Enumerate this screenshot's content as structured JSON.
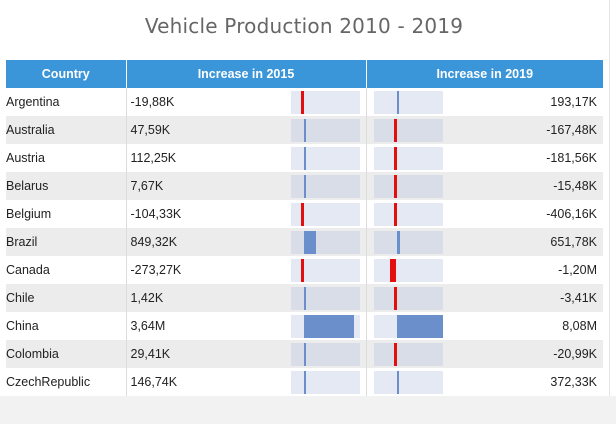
{
  "title": "Vehicle Production 2010 - 2019",
  "columns": {
    "country": "Country",
    "inc2015": "Increase in 2015",
    "inc2019": "Increase in 2019"
  },
  "colors": {
    "header": "#3b95d9",
    "positive_bar": "#6a8fcb",
    "negative_bar": "#e30e0e"
  },
  "scales": {
    "inc2015": {
      "min": -1000000,
      "max": 4000000
    },
    "inc2019": {
      "min": -4000000,
      "max": 8000000
    }
  },
  "rows": [
    {
      "country": "Argentina",
      "inc2015": "-19,88K",
      "inc2015_value": -19880,
      "inc2019": "193,17K",
      "inc2019_value": 193170
    },
    {
      "country": "Australia",
      "inc2015": "47,59K",
      "inc2015_value": 47590,
      "inc2019": "-167,48K",
      "inc2019_value": -167480
    },
    {
      "country": "Austria",
      "inc2015": "112,25K",
      "inc2015_value": 112250,
      "inc2019": "-181,56K",
      "inc2019_value": -181560
    },
    {
      "country": "Belarus",
      "inc2015": "7,67K",
      "inc2015_value": 7670,
      "inc2019": "-15,48K",
      "inc2019_value": -15480
    },
    {
      "country": "Belgium",
      "inc2015": "-104,33K",
      "inc2015_value": -104330,
      "inc2019": "-406,16K",
      "inc2019_value": -406160
    },
    {
      "country": "Brazil",
      "inc2015": "849,32K",
      "inc2015_value": 849320,
      "inc2019": "651,78K",
      "inc2019_value": 651780
    },
    {
      "country": "Canada",
      "inc2015": "-273,27K",
      "inc2015_value": -273270,
      "inc2019": "-1,20M",
      "inc2019_value": -1200000
    },
    {
      "country": "Chile",
      "inc2015": "1,42K",
      "inc2015_value": 1420,
      "inc2019": "-3,41K",
      "inc2019_value": -3410
    },
    {
      "country": "China",
      "inc2015": "3,64M",
      "inc2015_value": 3640000,
      "inc2019": "8,08M",
      "inc2019_value": 8080000
    },
    {
      "country": "Colombia",
      "inc2015": "29,41K",
      "inc2015_value": 29410,
      "inc2019": "-20,99K",
      "inc2019_value": -20990
    },
    {
      "country": "CzechRepublic",
      "inc2015": "146,74K",
      "inc2015_value": 146740,
      "inc2019": "372,33K",
      "inc2019_value": 372330
    }
  ]
}
